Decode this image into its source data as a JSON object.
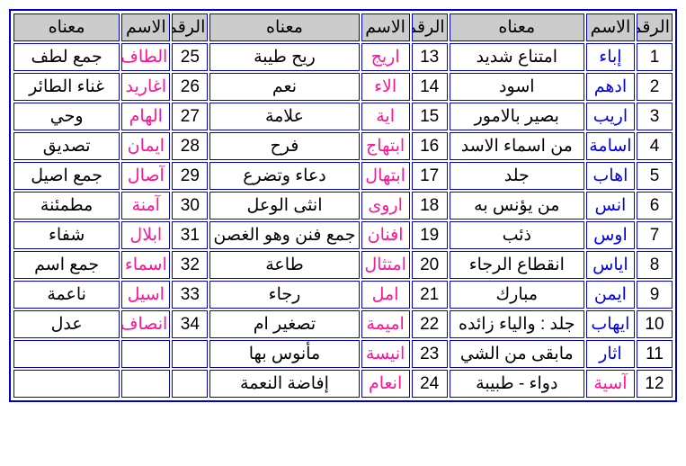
{
  "headers": {
    "num": "الرقم",
    "name": "الاسم",
    "mean": "معناه"
  },
  "colors": {
    "male": "#0000ee",
    "female": "#ff1493",
    "border": "#0000cc",
    "headerBg": "#cccccc"
  },
  "sections": [
    {
      "rows": [
        {
          "n": "1",
          "name": "إباء",
          "c": "m",
          "mean": "امتناع شديد"
        },
        {
          "n": "2",
          "name": "ادهم",
          "c": "m",
          "mean": "اسود"
        },
        {
          "n": "3",
          "name": "اريب",
          "c": "m",
          "mean": "بصير بالامور"
        },
        {
          "n": "4",
          "name": "اسامة",
          "c": "m",
          "mean": "من اسماء الاسد"
        },
        {
          "n": "5",
          "name": "اهاب",
          "c": "m",
          "mean": "جلد"
        },
        {
          "n": "6",
          "name": "انس",
          "c": "m",
          "mean": "من يؤنس به"
        },
        {
          "n": "7",
          "name": "اوس",
          "c": "m",
          "mean": "ذئب"
        },
        {
          "n": "8",
          "name": "اياس",
          "c": "m",
          "mean": "انقطاع الرجاء"
        },
        {
          "n": "9",
          "name": "ايمن",
          "c": "m",
          "mean": "مبارك"
        },
        {
          "n": "10",
          "name": "ايهاب",
          "c": "m",
          "mean": "جلد : والياء زائده"
        },
        {
          "n": "11",
          "name": "اثار",
          "c": "m",
          "mean": "مابقى من الشي"
        },
        {
          "n": "12",
          "name": "آسية",
          "c": "f",
          "mean": "دواء - طبيبة"
        }
      ]
    },
    {
      "rows": [
        {
          "n": "13",
          "name": "اريج",
          "c": "f",
          "mean": "ريح طيبة"
        },
        {
          "n": "14",
          "name": "الاء",
          "c": "f",
          "mean": "نعم"
        },
        {
          "n": "15",
          "name": "اية",
          "c": "f",
          "mean": "علامة"
        },
        {
          "n": "16",
          "name": "ابتهاج",
          "c": "f",
          "mean": "فرح"
        },
        {
          "n": "17",
          "name": "ابتهال",
          "c": "f",
          "mean": "دعاء وتضرع"
        },
        {
          "n": "18",
          "name": "اروى",
          "c": "f",
          "mean": "انثى الوعل"
        },
        {
          "n": "19",
          "name": "افنان",
          "c": "f",
          "mean": "جمع فنن وهو الغصن"
        },
        {
          "n": "20",
          "name": "امتثال",
          "c": "f",
          "mean": "طاعة"
        },
        {
          "n": "21",
          "name": "امل",
          "c": "f",
          "mean": "رجاء"
        },
        {
          "n": "22",
          "name": "اميمة",
          "c": "f",
          "mean": "تصغير ام"
        },
        {
          "n": "23",
          "name": "انيسة",
          "c": "f",
          "mean": "مأنوس بها"
        },
        {
          "n": "24",
          "name": "انعام",
          "c": "f",
          "mean": "إفاضة النعمة"
        }
      ]
    },
    {
      "rows": [
        {
          "n": "25",
          "name": "الطاف",
          "c": "f",
          "mean": "جمع لطف"
        },
        {
          "n": "26",
          "name": "اغاريد",
          "c": "f",
          "mean": "غناء الطائر"
        },
        {
          "n": "27",
          "name": "الهام",
          "c": "f",
          "mean": "وحي"
        },
        {
          "n": "28",
          "name": "ايمان",
          "c": "f",
          "mean": "تصديق"
        },
        {
          "n": "29",
          "name": "آصال",
          "c": "f",
          "mean": "جمع اصيل"
        },
        {
          "n": "30",
          "name": "آمنة",
          "c": "f",
          "mean": "مطمئنة"
        },
        {
          "n": "31",
          "name": "ابلال",
          "c": "f",
          "mean": "شفاء"
        },
        {
          "n": "32",
          "name": "اسماء",
          "c": "f",
          "mean": "جمع اسم"
        },
        {
          "n": "33",
          "name": "اسيل",
          "c": "f",
          "mean": "ناعمة"
        },
        {
          "n": "34",
          "name": "انصاف",
          "c": "f",
          "mean": "عدل"
        },
        {
          "n": "",
          "name": "",
          "c": "",
          "mean": ""
        },
        {
          "n": "",
          "name": "",
          "c": "",
          "mean": ""
        }
      ]
    }
  ]
}
